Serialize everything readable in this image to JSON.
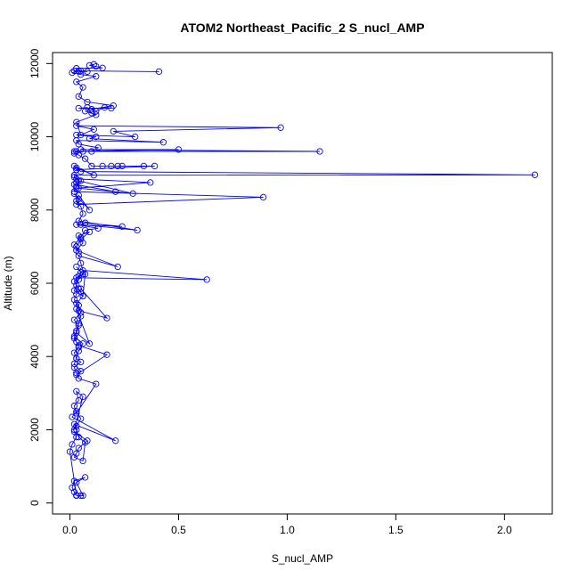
{
  "chart_data": {
    "type": "line",
    "title": "ATOM2 Northeast_Pacific_2 S_nucl_AMP",
    "xlabel": "S_nucl_AMP",
    "ylabel": "Altitude (m)",
    "xlim": [
      -0.08,
      2.22
    ],
    "ylim": [
      -300,
      12300
    ],
    "x_ticks": [
      0,
      0.5,
      1,
      1.5,
      2
    ],
    "x_tick_labels": [
      "0.0",
      "0.5",
      "1.0",
      "1.5",
      "2.0"
    ],
    "y_ticks": [
      0,
      2000,
      4000,
      6000,
      8000,
      10000,
      12000
    ],
    "y_tick_labels": [
      "0",
      "2000",
      "4000",
      "6000",
      "8000",
      "10000",
      "12000"
    ],
    "grid": false,
    "marker": "open-circle",
    "series_color": "#0000ff",
    "series": [
      {
        "x": [
          0.05,
          0.03,
          0.06,
          0.03,
          0.07,
          0.02,
          0.01,
          0.02,
          0.03,
          0.0,
          0.01,
          0.03,
          0.02,
          0.08,
          0.04,
          0.03,
          0.02,
          0.06,
          0.07,
          0.04,
          0.03,
          0.02,
          0.21,
          0.01,
          0.03,
          0.05,
          0.03,
          0.02,
          0.06,
          0.03,
          0.04,
          0.02,
          0.03,
          0.12,
          0.04,
          0.03,
          0.02,
          0.05,
          0.03,
          0.02,
          0.04,
          0.03,
          0.02,
          0.06,
          0.04,
          0.03,
          0.02,
          0.05,
          0.03,
          0.17,
          0.04,
          0.02,
          0.03,
          0.04,
          0.05,
          0.03,
          0.09,
          0.03,
          0.04,
          0.02,
          0.05,
          0.04,
          0.02,
          0.03,
          0.05,
          0.17,
          0.04,
          0.03,
          0.06,
          0.02,
          0.03,
          0.04,
          0.05,
          0.03,
          0.06,
          0.02,
          0.04,
          0.06,
          0.07,
          0.04,
          0.03,
          0.63,
          0.06,
          0.05,
          0.04,
          0.22,
          0.03,
          0.06,
          0.04,
          0.09,
          0.05,
          0.03,
          0.04,
          0.02,
          0.05,
          0.07,
          0.13,
          0.03,
          0.24,
          0.07,
          0.05,
          0.31,
          0.04,
          0.06,
          0.05,
          0.03,
          0.04,
          0.09,
          0.02,
          0.04,
          0.03,
          0.89,
          0.02,
          0.03,
          0.05,
          0.02,
          0.21,
          0.03,
          0.29,
          0.04,
          0.02,
          0.03,
          0.37,
          0.04,
          0.03,
          0.02,
          2.14,
          0.05,
          0.03,
          0.11,
          0.02,
          0.03,
          0.39,
          0.22,
          0.34,
          0.24,
          0.15,
          0.19,
          0.1,
          0.07,
          0.04,
          0.02,
          0.03,
          1.15,
          0.05,
          0.5,
          0.02,
          0.06,
          0.1,
          0.13,
          0.04,
          0.03,
          0.43,
          0.09,
          0.12,
          0.03,
          0.3,
          0.2,
          0.97,
          0.03,
          0.11,
          0.05,
          0.03,
          0.12,
          0.07,
          0.1,
          0.08,
          0.04,
          0.19,
          0.16,
          0.12,
          0.1,
          0.2,
          0.08,
          0.04,
          0.06,
          0.03,
          0.12,
          0.05,
          0.01,
          0.04,
          0.08,
          0.02,
          0.41,
          0.05,
          0.03,
          0.15,
          0.12,
          0.09,
          0.11
        ],
        "y": [
          200,
          200,
          200,
          560,
          700,
          600,
          420,
          300,
          210,
          1400,
          1600,
          1800,
          1950,
          1700,
          1500,
          1350,
          1250,
          1150,
          1650,
          1800,
          2000,
          2150,
          1700,
          2350,
          2500,
          2300,
          2100,
          2000,
          2900,
          3050,
          2800,
          2650,
          2450,
          3250,
          3400,
          3550,
          3700,
          3850,
          3950,
          4100,
          4250,
          4400,
          4550,
          4350,
          4150,
          3950,
          3800,
          3600,
          3500,
          4050,
          4300,
          4500,
          4700,
          4900,
          5100,
          5300,
          4350,
          4650,
          4850,
          5000,
          5200,
          5400,
          5550,
          5700,
          5850,
          5050,
          5250,
          5450,
          5650,
          5800,
          5950,
          6100,
          6300,
          6450,
          6250,
          6050,
          5850,
          5650,
          6250,
          6200,
          6150,
          6100,
          6350,
          6550,
          6750,
          6450,
          6900,
          7100,
          7300,
          7400,
          7200,
          7000,
          6850,
          7050,
          7250,
          7450,
          7500,
          7600,
          7550,
          7650,
          7600,
          7450,
          7700,
          7900,
          8100,
          8250,
          8400,
          8000,
          8450,
          8300,
          8150,
          8350,
          8500,
          8650,
          8800,
          8700,
          8500,
          8600,
          8450,
          8800,
          8900,
          8850,
          8750,
          8600,
          8750,
          8950,
          8960,
          9050,
          9150,
          8950,
          9200,
          9100,
          9200,
          9200,
          9200,
          9200,
          9200,
          9200,
          9200,
          9400,
          9500,
          9550,
          9600,
          9600,
          9650,
          9650,
          9600,
          9600,
          9600,
          9700,
          9800,
          9900,
          9850,
          9950,
          10000,
          10050,
          10000,
          10150,
          10250,
          10300,
          10200,
          10050,
          10400,
          10600,
          10700,
          10650,
          10800,
          10780,
          10780,
          10800,
          10700,
          10750,
          10850,
          10950,
          11100,
          11350,
          11500,
          11650,
          11700,
          11750,
          11800,
          11780,
          11800,
          11780,
          11800,
          11870,
          11880,
          11920,
          11950,
          11980
        ]
      }
    ]
  }
}
